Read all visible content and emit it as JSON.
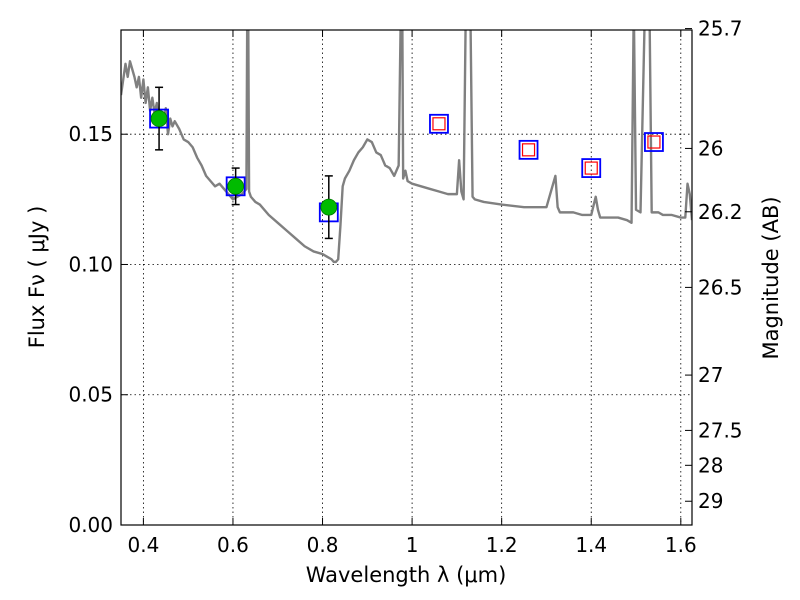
{
  "chart_data": {
    "type": "scatter",
    "title": "",
    "xlabel": "Wavelength  λ (μm)",
    "ylabel": "Flux  Fν  ( μJy )",
    "ylabel_right": "Magnitude (AB)",
    "xlim": [
      0.35,
      1.625
    ],
    "ylim": [
      0.0,
      0.19
    ],
    "grid": "dotted",
    "x_ticks": [
      0.4,
      0.6,
      0.8,
      1.0,
      1.2,
      1.4,
      1.6
    ],
    "x_tick_labels": [
      "0.4",
      "0.6",
      "0.8",
      "1",
      "1.2",
      "1.4",
      "1.6"
    ],
    "y_ticks": [
      0.0,
      0.05,
      0.1,
      0.15
    ],
    "y_tick_labels": [
      "0.00",
      "0.05",
      "0.10",
      "0.15"
    ],
    "right_axis_ticks": [
      {
        "label": "25.7",
        "mag": 25.7
      },
      {
        "label": "26",
        "mag": 26.0
      },
      {
        "label": "26.2",
        "mag": 26.2
      },
      {
        "label": "26.5",
        "mag": 26.5
      },
      {
        "label": "27",
        "mag": 27.0
      },
      {
        "label": "27.5",
        "mag": 27.5
      },
      {
        "label": "28",
        "mag": 28.0
      },
      {
        "label": "29",
        "mag": 29.0
      }
    ],
    "series": [
      {
        "kind": "model_spectrum_line",
        "color": "#808080",
        "x": [
          0.35,
          0.36,
          0.365,
          0.37,
          0.38,
          0.385,
          0.39,
          0.395,
          0.4,
          0.405,
          0.41,
          0.415,
          0.42,
          0.425,
          0.43,
          0.435,
          0.44,
          0.445,
          0.45,
          0.455,
          0.46,
          0.465,
          0.47,
          0.48,
          0.49,
          0.5,
          0.51,
          0.52,
          0.53,
          0.54,
          0.55,
          0.56,
          0.57,
          0.58,
          0.59,
          0.6,
          0.61,
          0.62,
          0.625,
          0.63,
          0.632,
          0.634,
          0.636,
          0.638,
          0.64,
          0.65,
          0.66,
          0.68,
          0.7,
          0.72,
          0.74,
          0.76,
          0.78,
          0.8,
          0.81,
          0.82,
          0.825,
          0.83,
          0.835,
          0.84,
          0.845,
          0.85,
          0.86,
          0.87,
          0.88,
          0.89,
          0.9,
          0.91,
          0.92,
          0.93,
          0.94,
          0.95,
          0.96,
          0.97,
          0.975,
          0.978,
          0.98,
          0.985,
          0.99,
          1.0,
          1.02,
          1.04,
          1.06,
          1.08,
          1.1,
          1.105,
          1.11,
          1.115,
          1.12,
          1.125,
          1.13,
          1.135,
          1.14,
          1.16,
          1.2,
          1.25,
          1.3,
          1.32,
          1.325,
          1.33,
          1.34,
          1.36,
          1.38,
          1.4,
          1.41,
          1.415,
          1.42,
          1.43,
          1.44,
          1.46,
          1.48,
          1.49,
          1.495,
          1.5,
          1.51,
          1.52,
          1.525,
          1.53,
          1.535,
          1.54,
          1.55,
          1.56,
          1.58,
          1.6,
          1.61,
          1.615,
          1.62,
          1.625
        ],
        "y": [
          0.165,
          0.177,
          0.172,
          0.178,
          0.172,
          0.168,
          0.172,
          0.164,
          0.171,
          0.162,
          0.168,
          0.159,
          0.164,
          0.158,
          0.162,
          0.153,
          0.158,
          0.155,
          0.16,
          0.15,
          0.156,
          0.153,
          0.155,
          0.152,
          0.148,
          0.147,
          0.145,
          0.141,
          0.138,
          0.134,
          0.132,
          0.13,
          0.131,
          0.129,
          0.127,
          0.125,
          0.126,
          0.127,
          0.128,
          0.129,
          0.2,
          0.2,
          0.128,
          0.127,
          0.126,
          0.124,
          0.123,
          0.119,
          0.116,
          0.113,
          0.11,
          0.107,
          0.105,
          0.104,
          0.103,
          0.102,
          0.101,
          0.101,
          0.102,
          0.115,
          0.13,
          0.133,
          0.136,
          0.14,
          0.143,
          0.145,
          0.148,
          0.147,
          0.143,
          0.142,
          0.138,
          0.137,
          0.134,
          0.138,
          0.2,
          0.2,
          0.133,
          0.136,
          0.132,
          0.131,
          0.13,
          0.129,
          0.128,
          0.127,
          0.127,
          0.14,
          0.128,
          0.125,
          0.2,
          0.2,
          0.2,
          0.126,
          0.125,
          0.124,
          0.123,
          0.122,
          0.122,
          0.134,
          0.122,
          0.12,
          0.12,
          0.12,
          0.119,
          0.119,
          0.126,
          0.121,
          0.118,
          0.118,
          0.118,
          0.118,
          0.117,
          0.116,
          0.2,
          0.121,
          0.12,
          0.2,
          0.2,
          0.2,
          0.12,
          0.12,
          0.12,
          0.119,
          0.119,
          0.118,
          0.118,
          0.131,
          0.127,
          0.117
        ]
      },
      {
        "kind": "observed_points_with_errors",
        "marker": "circle",
        "color": "#00bb00",
        "points": [
          {
            "x": 0.435,
            "y": 0.156,
            "yerr": 0.012
          },
          {
            "x": 0.606,
            "y": 0.13,
            "yerr": 0.007
          },
          {
            "x": 0.814,
            "y": 0.122,
            "yerr": 0.012
          }
        ]
      },
      {
        "kind": "model_photometry_squares",
        "marker": "square",
        "color": "#0000ff",
        "points": [
          {
            "x": 0.435,
            "y": 0.156
          },
          {
            "x": 0.606,
            "y": 0.13
          },
          {
            "x": 0.814,
            "y": 0.12
          },
          {
            "x": 1.06,
            "y": 0.154
          },
          {
            "x": 1.26,
            "y": 0.144
          },
          {
            "x": 1.4,
            "y": 0.137
          },
          {
            "x": 1.54,
            "y": 0.147
          }
        ]
      },
      {
        "kind": "upper_limit_squares",
        "marker": "square-open",
        "color": "#ff0000",
        "points": [
          {
            "x": 1.06,
            "y": 0.154
          },
          {
            "x": 1.26,
            "y": 0.144
          },
          {
            "x": 1.4,
            "y": 0.137
          },
          {
            "x": 1.54,
            "y": 0.147
          }
        ]
      }
    ]
  }
}
